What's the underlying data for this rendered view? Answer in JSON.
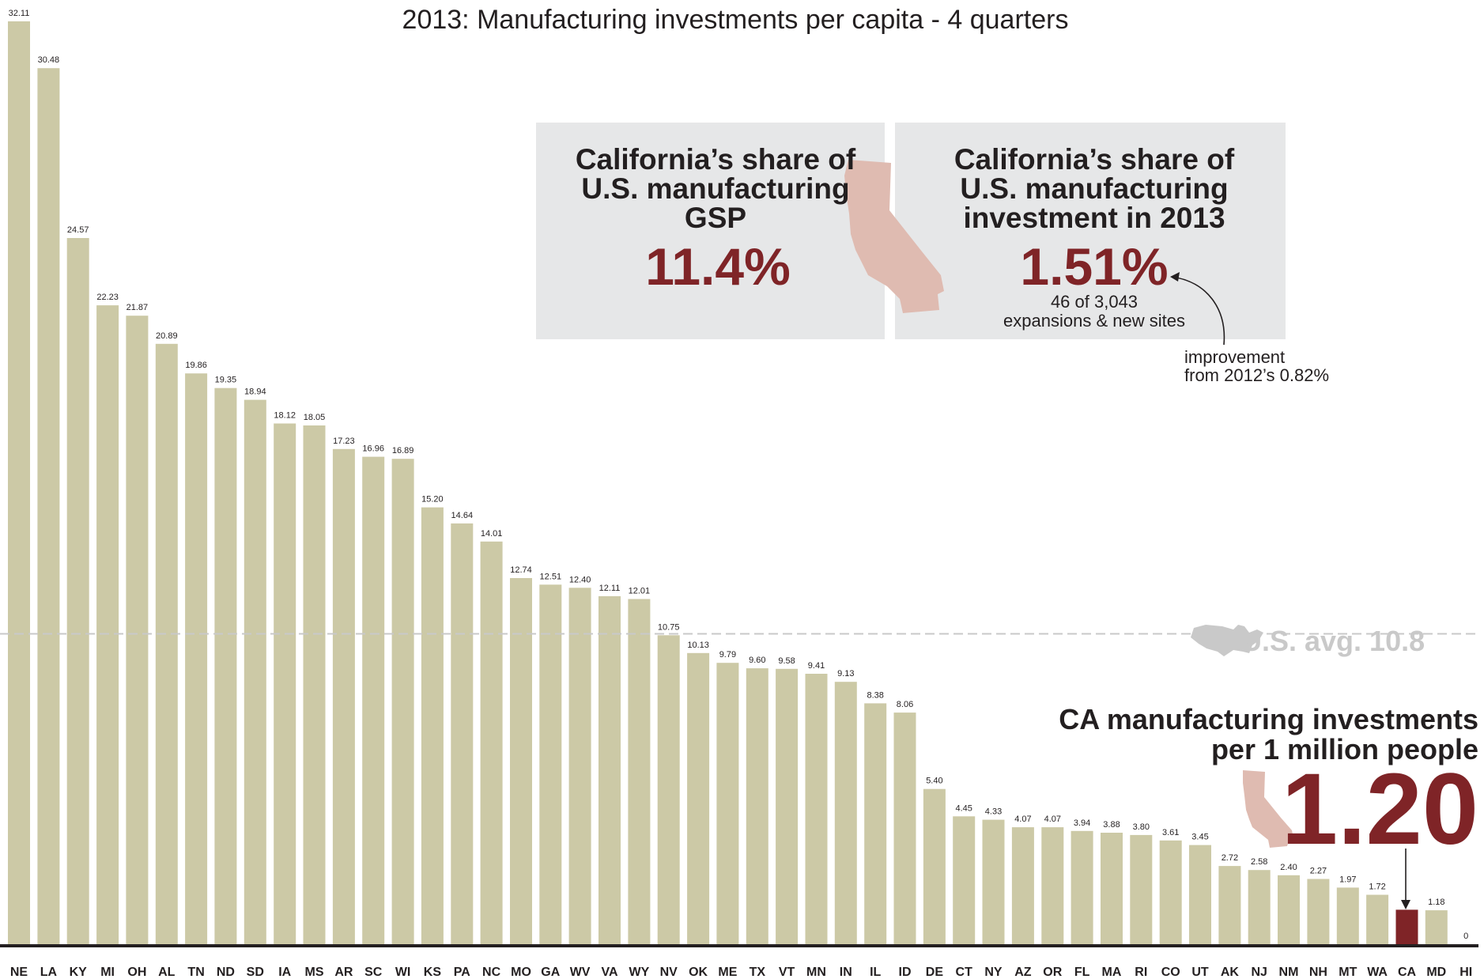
{
  "chart_data": {
    "type": "bar",
    "title": "2013: Manufacturing investments per capita - 4 quarters",
    "categories": [
      "NE",
      "LA",
      "KY",
      "MI",
      "OH",
      "AL",
      "TN",
      "ND",
      "SD",
      "IA",
      "MS",
      "AR",
      "SC",
      "WI",
      "KS",
      "PA",
      "NC",
      "MO",
      "GA",
      "WV",
      "VA",
      "WY",
      "NV",
      "OK",
      "ME",
      "TX",
      "VT",
      "MN",
      "IN",
      "IL",
      "ID",
      "DE",
      "CT",
      "NY",
      "AZ",
      "OR",
      "FL",
      "MA",
      "RI",
      "CO",
      "UT",
      "AK",
      "NJ",
      "NM",
      "NH",
      "MT",
      "WA",
      "CA",
      "MD",
      "HI"
    ],
    "values": [
      32.11,
      30.48,
      24.57,
      22.23,
      21.87,
      20.89,
      19.86,
      19.35,
      18.94,
      18.12,
      18.05,
      17.23,
      16.96,
      16.89,
      15.2,
      14.64,
      14.01,
      12.74,
      12.51,
      12.4,
      12.11,
      12.01,
      10.75,
      10.13,
      9.79,
      9.6,
      9.58,
      9.41,
      9.13,
      8.38,
      8.06,
      5.4,
      4.45,
      4.33,
      4.07,
      4.07,
      3.94,
      3.88,
      3.8,
      3.61,
      3.45,
      2.72,
      2.58,
      2.4,
      2.27,
      1.97,
      1.72,
      1.2,
      1.18,
      0
    ],
    "value_labels": [
      "32.11",
      "30.48",
      "24.57",
      "22.23",
      "21.87",
      "20.89",
      "19.86",
      "19.35",
      "18.94",
      "18.12",
      "18.05",
      "17.23",
      "16.96",
      "16.89",
      "15.20",
      "14.64",
      "14.01",
      "12.74",
      "12.51",
      "12.40",
      "12.11",
      "12.01",
      "10.75",
      "10.13",
      "9.79",
      "9.60",
      "9.58",
      "9.41",
      "9.13",
      "8.38",
      "8.06",
      "5.40",
      "4.45",
      "4.33",
      "4.07",
      "4.07",
      "3.94",
      "3.88",
      "3.80",
      "3.61",
      "3.45",
      "2.72",
      "2.58",
      "2.40",
      "2.27",
      "1.97",
      "1.72",
      "",
      "1.18",
      "0"
    ],
    "highlight": "CA",
    "ylim": [
      0,
      32.11
    ],
    "grid": false,
    "legend": "none",
    "reference_line": {
      "value": 10.8,
      "label": "U.S. avg. 10.8"
    }
  },
  "colors": {
    "bar": "#ccc9a6",
    "highlight": "#7f2427",
    "box_bg": "#e6e7e8",
    "state_shape": "#dfbbb1",
    "avg": "#c9c9c9",
    "text": "#231f20"
  },
  "icons": {
    "box_state": "california-silhouette-icon",
    "avg": "usa-map-icon",
    "ca_state": "california-silhouette-icon"
  },
  "box_gsp": {
    "heading_lines": [
      "California’s share of",
      "U.S. manufacturing",
      "GSP"
    ],
    "value": "11.4%"
  },
  "box_investment": {
    "heading_lines": [
      "California’s share of",
      "U.S. manufacturing",
      "investment in 2013"
    ],
    "value": "1.51%",
    "detail_lines": [
      "46 of 3,043",
      "expansions & new sites"
    ]
  },
  "improvement_note": [
    "improvement",
    "from 2012’s 0.82%"
  ],
  "ca_callout": {
    "heading_lines": [
      "CA manufacturing investments",
      "per 1 million people"
    ],
    "value": "1.20"
  }
}
